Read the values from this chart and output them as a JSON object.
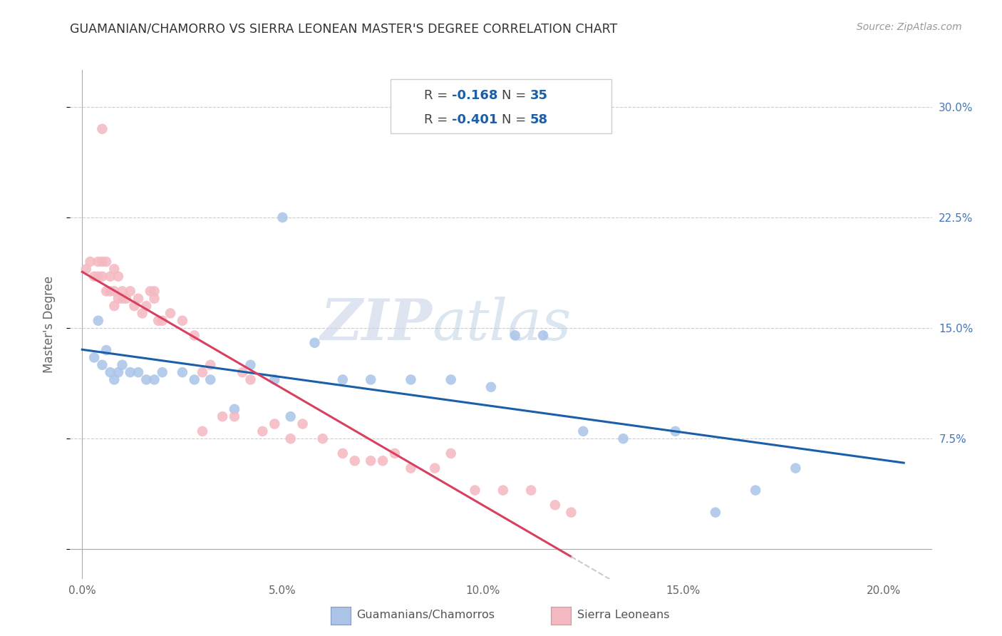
{
  "title": "GUAMANIAN/CHAMORRO VS SIERRA LEONEAN MASTER'S DEGREE CORRELATION CHART",
  "source": "Source: ZipAtlas.com",
  "ylabel": "Master's Degree",
  "x_ticks": [
    0.0,
    0.05,
    0.1,
    0.15,
    0.2
  ],
  "x_tick_labels": [
    "0.0%",
    "5.0%",
    "10.0%",
    "15.0%",
    "20.0%"
  ],
  "y_ticks": [
    0.0,
    0.075,
    0.15,
    0.225,
    0.3
  ],
  "y_tick_labels_right": [
    "",
    "7.5%",
    "15.0%",
    "22.5%",
    "30.0%"
  ],
  "xlim": [
    -0.003,
    0.212
  ],
  "ylim": [
    -0.02,
    0.325
  ],
  "blue_color": "#aac4e8",
  "pink_color": "#f4b8c0",
  "blue_line_color": "#1a5fa8",
  "pink_line_color": "#d94060",
  "dashed_color": "#cccccc",
  "legend_label_blue": "Guamanians/Chamorros",
  "legend_label_pink": "Sierra Leoneans",
  "watermark_zip": "ZIP",
  "watermark_atlas": "atlas",
  "blue_scatter_x": [
    0.003,
    0.004,
    0.005,
    0.006,
    0.007,
    0.008,
    0.009,
    0.01,
    0.012,
    0.014,
    0.016,
    0.018,
    0.02,
    0.025,
    0.028,
    0.032,
    0.038,
    0.042,
    0.048,
    0.052,
    0.058,
    0.065,
    0.072,
    0.082,
    0.092,
    0.102,
    0.108,
    0.115,
    0.125,
    0.135,
    0.148,
    0.158,
    0.168,
    0.178,
    0.05
  ],
  "blue_scatter_y": [
    0.13,
    0.155,
    0.125,
    0.135,
    0.12,
    0.115,
    0.12,
    0.125,
    0.12,
    0.12,
    0.115,
    0.115,
    0.12,
    0.12,
    0.115,
    0.115,
    0.095,
    0.125,
    0.115,
    0.09,
    0.14,
    0.115,
    0.115,
    0.115,
    0.115,
    0.11,
    0.145,
    0.145,
    0.08,
    0.075,
    0.08,
    0.025,
    0.04,
    0.055,
    0.225
  ],
  "pink_scatter_x": [
    0.001,
    0.002,
    0.003,
    0.004,
    0.004,
    0.005,
    0.005,
    0.006,
    0.006,
    0.007,
    0.007,
    0.008,
    0.008,
    0.009,
    0.009,
    0.01,
    0.01,
    0.011,
    0.012,
    0.013,
    0.014,
    0.015,
    0.016,
    0.017,
    0.018,
    0.019,
    0.02,
    0.022,
    0.025,
    0.028,
    0.03,
    0.032,
    0.035,
    0.038,
    0.04,
    0.042,
    0.045,
    0.048,
    0.052,
    0.055,
    0.06,
    0.065,
    0.068,
    0.072,
    0.075,
    0.078,
    0.082,
    0.088,
    0.092,
    0.098,
    0.105,
    0.112,
    0.118,
    0.122,
    0.03,
    0.018,
    0.008,
    0.005
  ],
  "pink_scatter_y": [
    0.19,
    0.195,
    0.185,
    0.195,
    0.185,
    0.185,
    0.195,
    0.195,
    0.175,
    0.185,
    0.175,
    0.19,
    0.175,
    0.17,
    0.185,
    0.175,
    0.17,
    0.17,
    0.175,
    0.165,
    0.17,
    0.16,
    0.165,
    0.175,
    0.17,
    0.155,
    0.155,
    0.16,
    0.155,
    0.145,
    0.12,
    0.125,
    0.09,
    0.09,
    0.12,
    0.115,
    0.08,
    0.085,
    0.075,
    0.085,
    0.075,
    0.065,
    0.06,
    0.06,
    0.06,
    0.065,
    0.055,
    0.055,
    0.065,
    0.04,
    0.04,
    0.04,
    0.03,
    0.025,
    0.08,
    0.175,
    0.165,
    0.285
  ]
}
